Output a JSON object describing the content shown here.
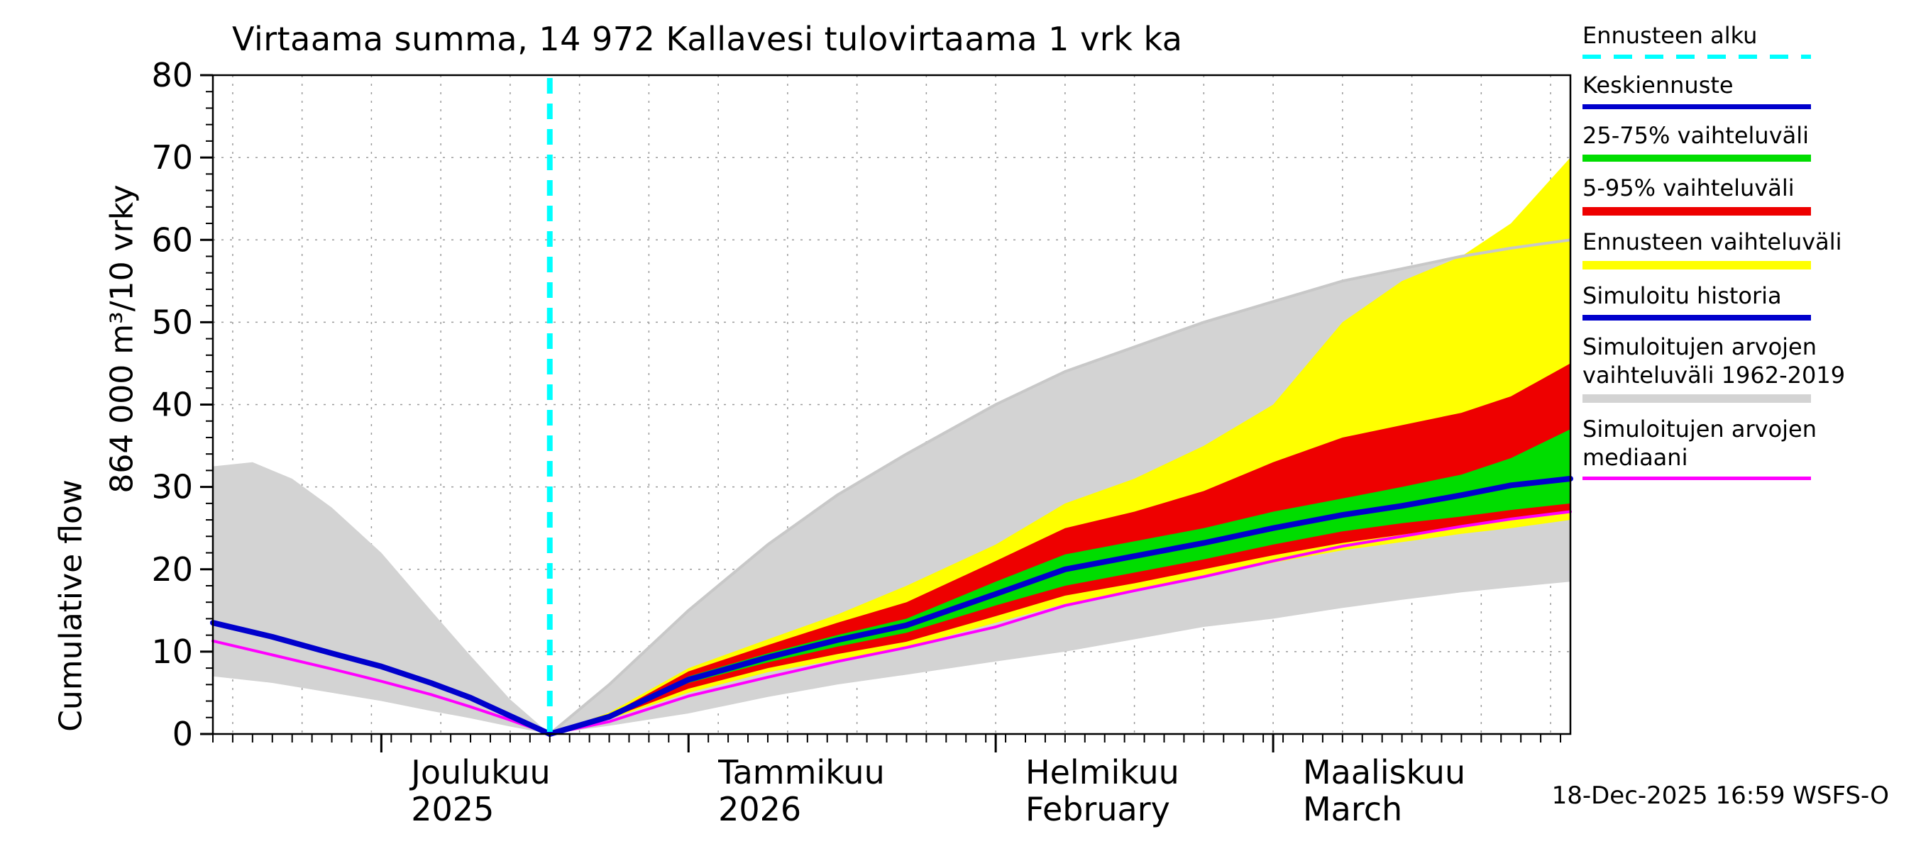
{
  "title": "Virtaama summa, 14 972 Kallavesi tulovirtaama 1 vrk ka",
  "y_axis": {
    "unit_label": "864 000 m³/10 vrky",
    "name_label": "Cumulative flow",
    "min": 0,
    "max": 80,
    "major_tick": 10,
    "minor_tick": 2,
    "tick_labels": [
      "0",
      "10",
      "20",
      "30",
      "40",
      "50",
      "60",
      "70",
      "80"
    ]
  },
  "x_axis": {
    "total_days": 137,
    "minor_tick_days": 2,
    "grid_interval_days": 7,
    "grid_offset_days": 2,
    "months": [
      {
        "label": "Joulukuu",
        "sublabel": "2025",
        "start_day": 17
      },
      {
        "label": "Tammikuu",
        "sublabel": "2026",
        "start_day": 48
      },
      {
        "label": "Helmikuu",
        "sublabel": "February",
        "start_day": 79
      },
      {
        "label": "Maaliskuu",
        "sublabel": "March",
        "start_day": 107
      }
    ]
  },
  "forecast": {
    "start_day": 34,
    "start_line_color": "#00ffff"
  },
  "footer": {
    "timestamp": "18-Dec-2025 16:59 WSFS-O"
  },
  "colors": {
    "mean_forecast": "#0000cc",
    "band_25_75": "#00dd00",
    "band_5_95": "#ee0000",
    "forecast_range": "#ffff00",
    "simulated_history": "#0000cc",
    "simulated_range": "#d3d3d3",
    "simulated_median": "#ff00ff",
    "forecast_start": "#00ffff",
    "grid": "#9a9a9a"
  },
  "legend": [
    {
      "label": "Ennusteen alku",
      "color": "#00ffff",
      "style": "dashed",
      "thickness": 6
    },
    {
      "label": "Keskiennuste",
      "color": "#0000cc",
      "style": "solid",
      "thickness": 7
    },
    {
      "label": "25-75% vaihteluväli",
      "color": "#00dd00",
      "style": "solid",
      "thickness": 10
    },
    {
      "label": "5-95% vaihteluväli",
      "color": "#ee0000",
      "style": "solid",
      "thickness": 12
    },
    {
      "label": "Ennusteen vaihteluväli",
      "color": "#ffff00",
      "style": "solid",
      "thickness": 12
    },
    {
      "label": "Simuloitu historia",
      "color": "#0000cc",
      "style": "solid",
      "thickness": 8
    },
    {
      "label": "Simuloitujen arvojen vaihteluväli 1962-2019",
      "color": "#d3d3d3",
      "style": "solid",
      "thickness": 12
    },
    {
      "label": "Simuloitujen arvojen mediaani",
      "color": "#ff00ff",
      "style": "solid",
      "thickness": 5
    }
  ],
  "chart_data": {
    "type": "area",
    "title": "Virtaama summa, 14 972 Kallavesi tulovirtaama 1 vrk ka",
    "xlabel": "",
    "ylabel": "864 000 m³/10 vrky — Cumulative flow",
    "ylim": [
      0,
      80
    ],
    "x_unit": "day_index",
    "total_days": 137,
    "forecast_start_day": 34,
    "bands": [
      {
        "name": "simulated-range-history",
        "color": "#d3d3d3",
        "upper": [
          [
            0,
            32.5
          ],
          [
            4,
            33
          ],
          [
            8,
            31
          ],
          [
            12,
            27.5
          ],
          [
            17,
            22
          ],
          [
            22,
            15
          ],
          [
            26,
            9.5
          ],
          [
            30,
            4.2
          ],
          [
            34,
            0
          ]
        ],
        "lower": [
          [
            0,
            7
          ],
          [
            6,
            6.2
          ],
          [
            12,
            5
          ],
          [
            17,
            4
          ],
          [
            22,
            2.8
          ],
          [
            26,
            1.9
          ],
          [
            30,
            0.9
          ],
          [
            34,
            0
          ]
        ]
      },
      {
        "name": "simulated-range-forecast",
        "color": "#d3d3d3",
        "edge_color": "#c8c8c8",
        "upper": [
          [
            34,
            0
          ],
          [
            40,
            6
          ],
          [
            48,
            15
          ],
          [
            56,
            23
          ],
          [
            63,
            29
          ],
          [
            70,
            34
          ],
          [
            79,
            40
          ],
          [
            86,
            44
          ],
          [
            93,
            47
          ],
          [
            100,
            50
          ],
          [
            107,
            52.5
          ],
          [
            114,
            55
          ],
          [
            120,
            56.5
          ],
          [
            126,
            58
          ],
          [
            131,
            59
          ],
          [
            137,
            60
          ]
        ],
        "lower": [
          [
            34,
            0
          ],
          [
            40,
            1
          ],
          [
            48,
            2.5
          ],
          [
            56,
            4.5
          ],
          [
            63,
            6
          ],
          [
            70,
            7.2
          ],
          [
            79,
            8.8
          ],
          [
            86,
            10
          ],
          [
            93,
            11.5
          ],
          [
            100,
            13
          ],
          [
            107,
            14
          ],
          [
            114,
            15.3
          ],
          [
            120,
            16.3
          ],
          [
            126,
            17.2
          ],
          [
            131,
            17.8
          ],
          [
            137,
            18.5
          ]
        ]
      },
      {
        "name": "forecast-range",
        "color": "#ffff00",
        "upper": [
          [
            34,
            0
          ],
          [
            40,
            2.6
          ],
          [
            48,
            8
          ],
          [
            56,
            11.5
          ],
          [
            63,
            14.5
          ],
          [
            70,
            18
          ],
          [
            79,
            23
          ],
          [
            86,
            28
          ],
          [
            93,
            31
          ],
          [
            100,
            35
          ],
          [
            107,
            40
          ],
          [
            114,
            50
          ],
          [
            120,
            55
          ],
          [
            126,
            58
          ],
          [
            131,
            62
          ],
          [
            137,
            70
          ]
        ],
        "lower": [
          [
            34,
            0
          ],
          [
            40,
            1.8
          ],
          [
            48,
            5
          ],
          [
            56,
            7.5
          ],
          [
            63,
            9
          ],
          [
            70,
            10.5
          ],
          [
            79,
            13.5
          ],
          [
            86,
            15.8
          ],
          [
            93,
            17.3
          ],
          [
            100,
            19
          ],
          [
            107,
            20.8
          ],
          [
            114,
            22.3
          ],
          [
            120,
            23.3
          ],
          [
            126,
            24.3
          ],
          [
            131,
            25
          ],
          [
            137,
            26
          ]
        ]
      },
      {
        "name": "range-5-95",
        "color": "#ee0000",
        "upper": [
          [
            34,
            0
          ],
          [
            40,
            2.3
          ],
          [
            48,
            7.6
          ],
          [
            56,
            10.8
          ],
          [
            63,
            13.5
          ],
          [
            70,
            16
          ],
          [
            79,
            21
          ],
          [
            86,
            25
          ],
          [
            93,
            27
          ],
          [
            100,
            29.5
          ],
          [
            107,
            33
          ],
          [
            114,
            36
          ],
          [
            120,
            37.5
          ],
          [
            126,
            39
          ],
          [
            131,
            41
          ],
          [
            137,
            45
          ]
        ],
        "lower": [
          [
            34,
            0
          ],
          [
            40,
            1.9
          ],
          [
            48,
            5.5
          ],
          [
            56,
            8
          ],
          [
            63,
            9.7
          ],
          [
            70,
            11.2
          ],
          [
            79,
            14.3
          ],
          [
            86,
            16.8
          ],
          [
            93,
            18.3
          ],
          [
            100,
            20
          ],
          [
            107,
            21.7
          ],
          [
            114,
            23.2
          ],
          [
            120,
            24.2
          ],
          [
            126,
            25.2
          ],
          [
            131,
            26
          ],
          [
            137,
            27
          ]
        ]
      },
      {
        "name": "range-25-75",
        "color": "#00dd00",
        "upper": [
          [
            34,
            0
          ],
          [
            40,
            2.2
          ],
          [
            48,
            7
          ],
          [
            56,
            9.8
          ],
          [
            63,
            12
          ],
          [
            70,
            14
          ],
          [
            79,
            18.5
          ],
          [
            86,
            21.8
          ],
          [
            93,
            23.4
          ],
          [
            100,
            25
          ],
          [
            107,
            27
          ],
          [
            114,
            28.6
          ],
          [
            120,
            30
          ],
          [
            126,
            31.5
          ],
          [
            131,
            33.5
          ],
          [
            137,
            37
          ]
        ],
        "lower": [
          [
            34,
            0
          ],
          [
            40,
            2
          ],
          [
            48,
            6.2
          ],
          [
            56,
            8.7
          ],
          [
            63,
            10.6
          ],
          [
            70,
            12.3
          ],
          [
            79,
            15.6
          ],
          [
            86,
            18
          ],
          [
            93,
            19.6
          ],
          [
            100,
            21.2
          ],
          [
            107,
            23
          ],
          [
            114,
            24.6
          ],
          [
            120,
            25.6
          ],
          [
            126,
            26.4
          ],
          [
            131,
            27.2
          ],
          [
            137,
            28
          ]
        ]
      }
    ],
    "lines": [
      {
        "name": "simulated-median-history-line",
        "color": "#ff00ff",
        "width": 4,
        "points": [
          [
            0,
            11.3
          ],
          [
            6,
            9.6
          ],
          [
            12,
            7.9
          ],
          [
            17,
            6.4
          ],
          [
            22,
            4.8
          ],
          [
            26,
            3.3
          ],
          [
            30,
            1.7
          ],
          [
            34,
            0
          ]
        ]
      },
      {
        "name": "simulated-median-forecast-line",
        "color": "#ff00ff",
        "width": 4,
        "points": [
          [
            34,
            0
          ],
          [
            40,
            1.5
          ],
          [
            48,
            4.6
          ],
          [
            56,
            6.9
          ],
          [
            63,
            8.8
          ],
          [
            70,
            10.5
          ],
          [
            79,
            13
          ],
          [
            86,
            15.6
          ],
          [
            93,
            17.4
          ],
          [
            100,
            19.1
          ],
          [
            107,
            21
          ],
          [
            114,
            22.8
          ],
          [
            120,
            24
          ],
          [
            126,
            25.2
          ],
          [
            131,
            26.1
          ],
          [
            137,
            27
          ]
        ]
      },
      {
        "name": "simulated-history-line",
        "color": "#0000cc",
        "width": 8,
        "points": [
          [
            0,
            13.5
          ],
          [
            6,
            11.8
          ],
          [
            12,
            9.8
          ],
          [
            17,
            8.2
          ],
          [
            22,
            6.2
          ],
          [
            26,
            4.4
          ],
          [
            30,
            2.2
          ],
          [
            34,
            0
          ]
        ]
      },
      {
        "name": "mean-forecast-line",
        "color": "#0000cc",
        "width": 8,
        "points": [
          [
            34,
            0
          ],
          [
            40,
            2.1
          ],
          [
            48,
            6.6
          ],
          [
            56,
            9.3
          ],
          [
            63,
            11.4
          ],
          [
            70,
            13.2
          ],
          [
            79,
            17
          ],
          [
            86,
            20
          ],
          [
            93,
            21.6
          ],
          [
            100,
            23.2
          ],
          [
            107,
            25
          ],
          [
            114,
            26.6
          ],
          [
            120,
            27.7
          ],
          [
            126,
            29
          ],
          [
            131,
            30.2
          ],
          [
            137,
            31
          ]
        ]
      }
    ]
  }
}
